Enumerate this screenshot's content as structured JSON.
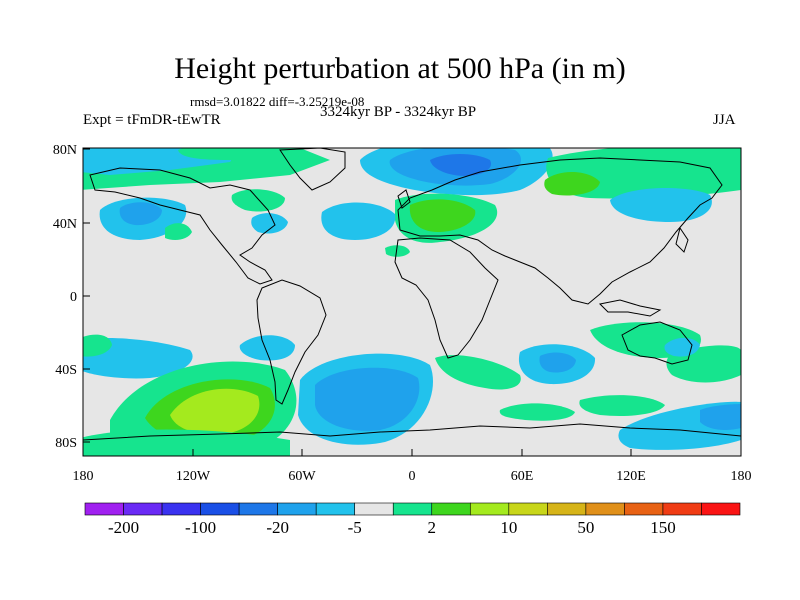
{
  "title": "Height perturbation at 500 hPa (in m)",
  "stats": {
    "rmsd_label": "rmsd=",
    "rmsd": "3.01822",
    "diff_label": "diff=",
    "diff": "-3.25219e-08"
  },
  "experiment": "Expt = tFmDR-tEwTR",
  "period": "3324kyr BP - 3324kyr BP",
  "season": "JJA",
  "axes": {
    "lat_labels": [
      "80N",
      "40N",
      "0",
      "40S",
      "80S"
    ],
    "lon_labels": [
      "180",
      "120W",
      "60W",
      "0",
      "60E",
      "120E",
      "180"
    ]
  },
  "colorbar": {
    "labels": [
      "-200",
      "-100",
      "-20",
      "-5",
      "2",
      "10",
      "50",
      "150"
    ],
    "colors": [
      "#a020f0",
      "#6a2af5",
      "#3a32f0",
      "#1a4fe6",
      "#1e77e8",
      "#1fa2ec",
      "#22c2ec",
      "#e6e6e6",
      "#16e48e",
      "#3ed61e",
      "#a4ea1e",
      "#c8d61a",
      "#d6b418",
      "#e0901a",
      "#e86214",
      "#f03c14",
      "#fa1414"
    ]
  },
  "palette": {
    "land_line": "#000000",
    "background": "#e6e6e6"
  }
}
